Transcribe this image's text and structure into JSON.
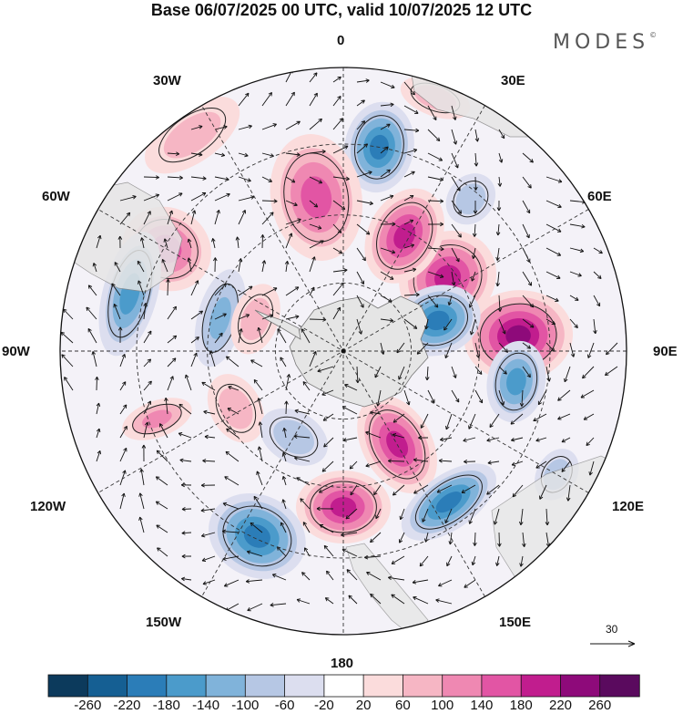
{
  "title": "Base 06/07/2025 00 UTC, valid 10/07/2025 12 UTC",
  "brand": "MODES",
  "brand_mark": "©",
  "map_labels": {
    "lon_0": "0",
    "lon_30e": "30E",
    "lon_60e": "60E",
    "lon_90e": "90E",
    "lon_120e": "120E",
    "lon_150e": "150E",
    "lon_180": "180",
    "lon_150w": "150W",
    "lon_120w": "120W",
    "lon_90w": "90W",
    "lon_60w": "60W",
    "lon_30w": "30W"
  },
  "reference_vector": "30",
  "colorbar": {
    "ticks": [
      "-260",
      "-220",
      "-180",
      "-140",
      "-100",
      "-60",
      "-20",
      "20",
      "60",
      "100",
      "140",
      "180",
      "220",
      "260"
    ],
    "colors": [
      "#0c3a5c",
      "#155f93",
      "#2b7db8",
      "#4b9bcb",
      "#80b3da",
      "#b6c7e4",
      "#dcdeef",
      "#ffffff",
      "#fbdcdc",
      "#f6b6c4",
      "#ef88b2",
      "#e255a4",
      "#c11d8e",
      "#8e0a7a",
      "#5a0a5e"
    ]
  },
  "anomalies": [
    {
      "lon": 180,
      "lat_r": 0.55,
      "val": 200,
      "rx": 52,
      "ry": 40
    },
    {
      "lon": 150,
      "lat_r": 0.38,
      "val": 220,
      "rx": 38,
      "ry": 58
    },
    {
      "lon": 205,
      "lat_r": 0.72,
      "val": -200,
      "rx": 55,
      "ry": 45
    },
    {
      "lon": 85,
      "lat_r": 0.62,
      "val": 240,
      "rx": 50,
      "ry": 60
    },
    {
      "lon": 55,
      "lat_r": 0.45,
      "val": 200,
      "rx": 50,
      "ry": 55
    },
    {
      "lon": 28,
      "lat_r": 0.46,
      "val": 200,
      "rx": 40,
      "ry": 55
    },
    {
      "lon": 72,
      "lat_r": 0.35,
      "val": -200,
      "rx": 38,
      "ry": 48
    },
    {
      "lon": 100,
      "lat_r": 0.62,
      "val": -160,
      "rx": 45,
      "ry": 32
    },
    {
      "lon": 145,
      "lat_r": 0.65,
      "val": -220,
      "rx": 60,
      "ry": 30
    },
    {
      "lon": 120,
      "lat_r": 0.87,
      "val": -100,
      "rx": 30,
      "ry": 22
    },
    {
      "lon": 10,
      "lat_r": 0.73,
      "val": -200,
      "rx": 38,
      "ry": 50
    },
    {
      "lon": 300,
      "lat_r": 0.72,
      "val": 180,
      "rx": 45,
      "ry": 50
    },
    {
      "lon": 242,
      "lat_r": 0.43,
      "val": 100,
      "rx": 40,
      "ry": 28
    },
    {
      "lon": 285,
      "lat_r": 0.78,
      "val": -180,
      "rx": 70,
      "ry": 30
    },
    {
      "lon": 285,
      "lat_r": 0.45,
      "val": -120,
      "rx": 55,
      "ry": 25
    },
    {
      "lon": 350,
      "lat_r": 0.55,
      "val": 160,
      "rx": 50,
      "ry": 70
    },
    {
      "lon": 290,
      "lat_r": 0.33,
      "val": 100,
      "rx": 40,
      "ry": 25
    },
    {
      "lon": 210,
      "lat_r": 0.35,
      "val": -80,
      "rx": 40,
      "ry": 28
    },
    {
      "lon": 40,
      "lat_r": 0.7,
      "val": -100,
      "rx": 25,
      "ry": 30
    },
    {
      "lon": 20,
      "lat_r": 0.95,
      "val": 100,
      "rx": 40,
      "ry": 20
    },
    {
      "lon": 250,
      "lat_r": 0.7,
      "val": 120,
      "rx": 20,
      "ry": 40
    },
    {
      "lon": 325,
      "lat_r": 0.93,
      "val": 80,
      "rx": 60,
      "ry": 30
    }
  ]
}
